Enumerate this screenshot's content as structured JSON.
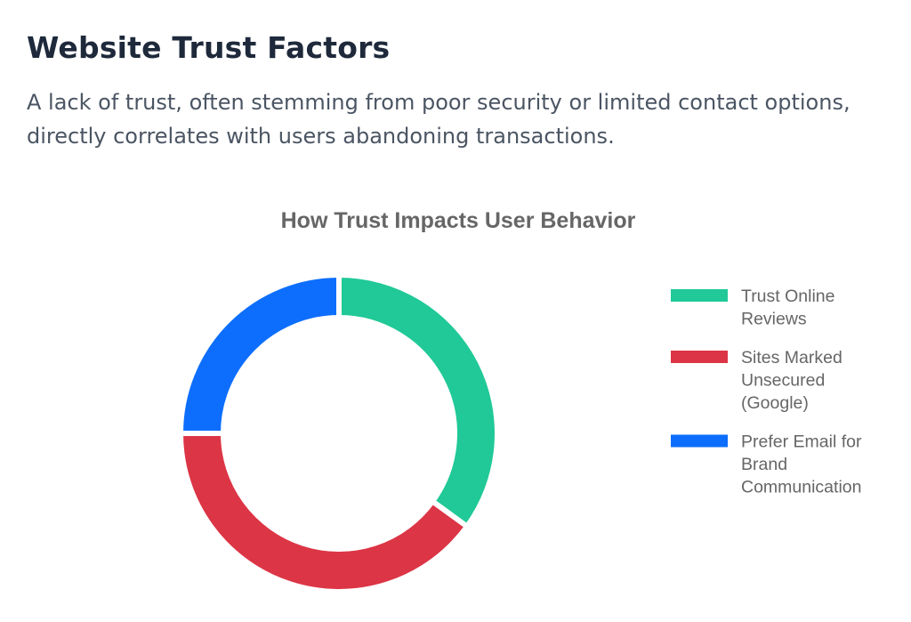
{
  "header": {
    "title": "Website Trust Factors",
    "description": "A lack of trust, often stemming from poor security or limited contact options, directly correlates with users abandoning transactions."
  },
  "chart_data": {
    "type": "doughnut",
    "title": "How Trust Impacts User Behavior",
    "legend_position": "right",
    "slices": [
      {
        "label": [
          "Trust Online",
          "Reviews"
        ],
        "value": 35,
        "color": "#20c997"
      },
      {
        "label": [
          "Sites Marked",
          "Unsecured",
          "(Google)"
        ],
        "value": 40,
        "color": "#dc3545"
      },
      {
        "label": [
          "Prefer Email for",
          "Brand",
          "Communication"
        ],
        "value": 25,
        "color": "#0d6efd"
      }
    ]
  }
}
